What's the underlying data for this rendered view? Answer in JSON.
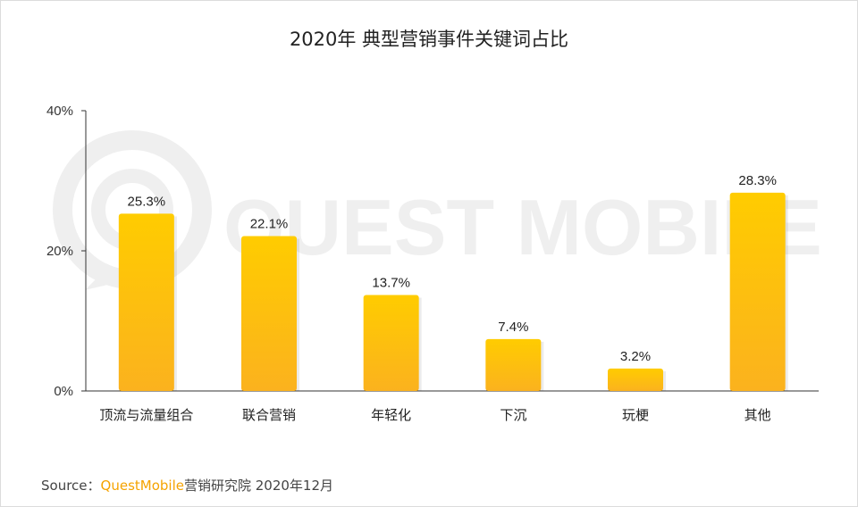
{
  "chart_data": {
    "type": "bar",
    "title": "2020年 典型营销事件关键词占比",
    "categories": [
      "顶流与流量组合",
      "联合营销",
      "年轻化",
      "下沉",
      "玩梗",
      "其他"
    ],
    "values": [
      25.3,
      22.1,
      13.7,
      7.4,
      3.2,
      28.3
    ],
    "data_labels": [
      "25.3%",
      "22.1%",
      "13.7%",
      "7.4%",
      "3.2%",
      "28.3%"
    ],
    "yticks": [
      0,
      20,
      40
    ],
    "ytick_labels": [
      "0%",
      "20%",
      "40%"
    ],
    "ylim": [
      0,
      40
    ],
    "grid": false,
    "legend": "none",
    "bar_color_top": "#ffcc00",
    "bar_color_bottom": "#fbb21e"
  },
  "source": {
    "prefix": "Source：",
    "brand": "QuestMobile",
    "suffix": "营销研究院 2020年12月"
  },
  "watermark": "QUEST MOBILE"
}
